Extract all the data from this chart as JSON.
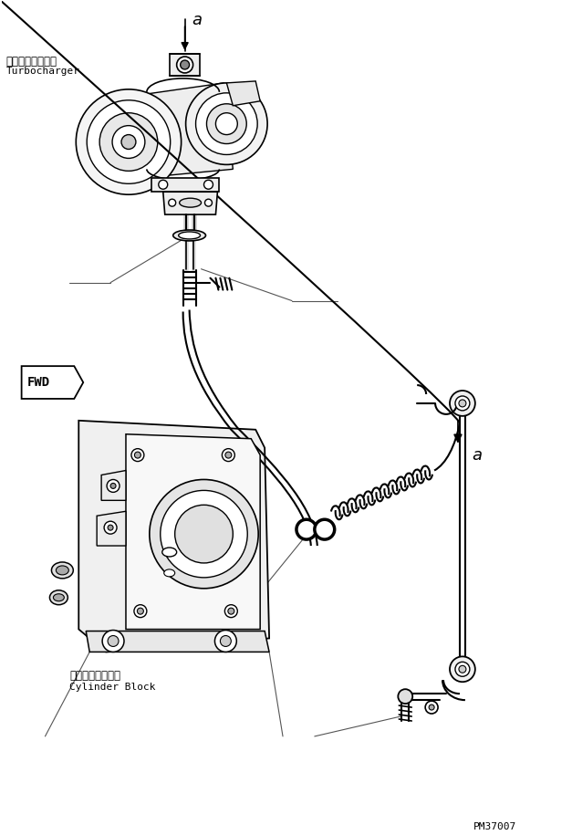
{
  "bg_color": "#ffffff",
  "line_color": "#000000",
  "fig_width": 6.27,
  "fig_height": 9.15,
  "dpi": 100,
  "part_id": "PM37007",
  "label_a_1": "a",
  "label_a_2": "a",
  "label_turbo_jp": "ターボチャージャ",
  "label_turbo_en": "Turbocharger",
  "label_cylinder_jp": "シリンダブロック",
  "label_cylinder_en": "Cylinder Block",
  "label_fwd": "FWD"
}
